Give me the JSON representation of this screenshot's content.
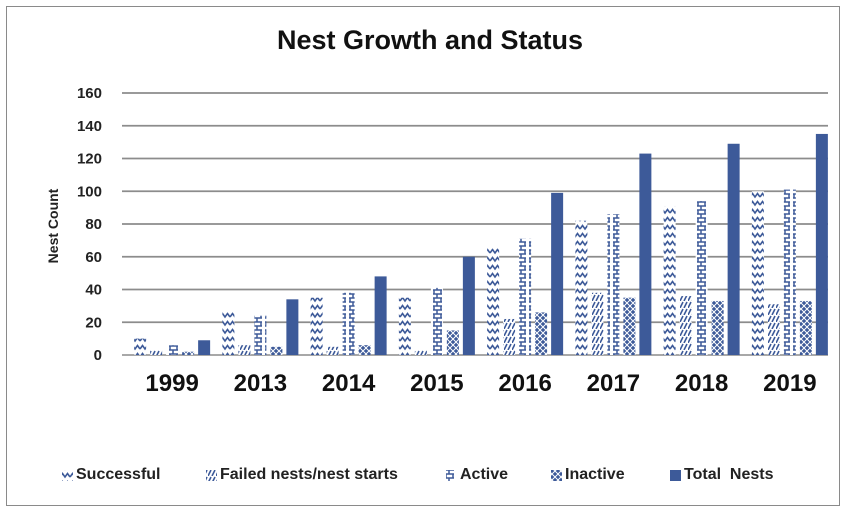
{
  "chart_data": {
    "type": "bar",
    "title": "Nest Growth and Status",
    "ylabel": "Nest Count",
    "xlabel": "",
    "ylim": [
      0,
      160
    ],
    "yticks": [
      0,
      20,
      40,
      60,
      80,
      100,
      120,
      140,
      160
    ],
    "grid": true,
    "legend_position": "bottom",
    "categories": [
      "1999",
      "2013",
      "2014",
      "2015",
      "2016",
      "2017",
      "2018",
      "2019"
    ],
    "series": [
      {
        "name": "Successful",
        "pattern": "zigzag",
        "color": "#3d5a99",
        "values": [
          10,
          26,
          35,
          35,
          65,
          82,
          91,
          100
        ]
      },
      {
        "name": "Failed nests/nest starts",
        "pattern": "slash",
        "color": "#3d5a99",
        "values": [
          3,
          6,
          5,
          3,
          22,
          38,
          36,
          31
        ]
      },
      {
        "name": "Active",
        "pattern": "brick",
        "color": "#3d5a99",
        "values": [
          6,
          24,
          38,
          41,
          71,
          86,
          94,
          101
        ]
      },
      {
        "name": "Inactive",
        "pattern": "cross",
        "color": "#3d5a99",
        "values": [
          2,
          5,
          6,
          15,
          26,
          35,
          33,
          33
        ]
      },
      {
        "name": "Total  Nests",
        "pattern": "solid",
        "color": "#3d5a99",
        "values": [
          9,
          34,
          48,
          60,
          99,
          123,
          129,
          135
        ]
      }
    ]
  }
}
